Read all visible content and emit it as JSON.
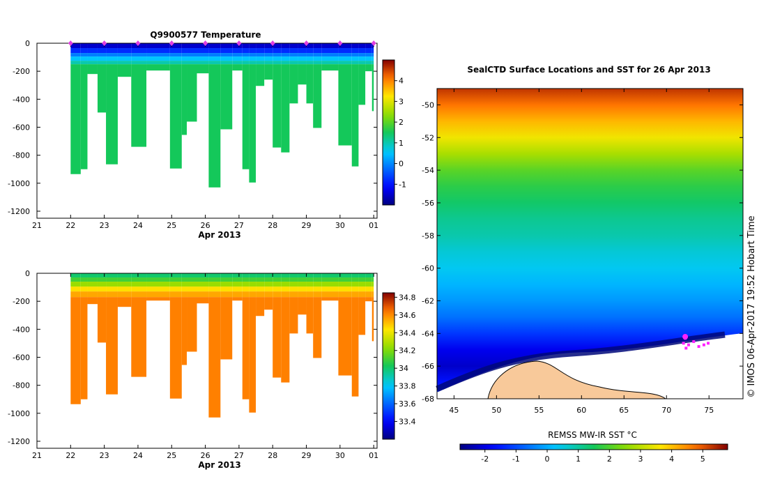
{
  "figure": {
    "credit": "© IMOS 06-Apr-2017 19:52 Hobart Time"
  },
  "chart_data": [
    {
      "id": "temperature",
      "type": "heatmap",
      "title": "Q9900577  Temperature",
      "xlabel": "Apr 2013",
      "x_ticks": [
        "21",
        "22",
        "23",
        "24",
        "25",
        "26",
        "27",
        "28",
        "29",
        "30",
        "01"
      ],
      "ylim": [
        -1250,
        0
      ],
      "y_ticks": [
        0,
        -200,
        -400,
        -600,
        -800,
        -1000,
        -1200
      ],
      "colorbar": {
        "min": -2,
        "max": 5,
        "ticks": [
          -1,
          0,
          1,
          2,
          3,
          4
        ]
      },
      "layers": [
        {
          "depth": [
            0,
            35
          ],
          "value": -1.5
        },
        {
          "depth": [
            35,
            70
          ],
          "value": -0.8
        },
        {
          "depth": [
            70,
            95
          ],
          "value": -0.1
        },
        {
          "depth": [
            95,
            125
          ],
          "value": 0.5
        },
        {
          "depth": [
            125,
            150
          ],
          "value": 1.0
        },
        {
          "depth": [
            150,
            2000
          ],
          "value": 1.5
        }
      ],
      "profiles": [
        {
          "day": 22.0,
          "end_day": 22.3,
          "max_depth": 935
        },
        {
          "day": 22.3,
          "end_day": 22.5,
          "max_depth": 900
        },
        {
          "day": 22.5,
          "end_day": 22.8,
          "max_depth": 220
        },
        {
          "day": 22.8,
          "end_day": 23.05,
          "max_depth": 495
        },
        {
          "day": 23.05,
          "end_day": 23.4,
          "max_depth": 865
        },
        {
          "day": 23.4,
          "end_day": 23.8,
          "max_depth": 240
        },
        {
          "day": 23.8,
          "end_day": 24.25,
          "max_depth": 740
        },
        {
          "day": 24.25,
          "end_day": 24.95,
          "max_depth": 195
        },
        {
          "day": 24.95,
          "end_day": 25.3,
          "max_depth": 895
        },
        {
          "day": 25.3,
          "end_day": 25.45,
          "max_depth": 655
        },
        {
          "day": 25.45,
          "end_day": 25.75,
          "max_depth": 560
        },
        {
          "day": 25.75,
          "end_day": 26.1,
          "max_depth": 215
        },
        {
          "day": 26.1,
          "end_day": 26.45,
          "max_depth": 1030
        },
        {
          "day": 26.45,
          "end_day": 26.8,
          "max_depth": 615
        },
        {
          "day": 26.8,
          "end_day": 27.1,
          "max_depth": 195
        },
        {
          "day": 27.1,
          "end_day": 27.3,
          "max_depth": 900
        },
        {
          "day": 27.3,
          "end_day": 27.5,
          "max_depth": 995
        },
        {
          "day": 27.5,
          "end_day": 27.75,
          "max_depth": 305
        },
        {
          "day": 27.75,
          "end_day": 28.0,
          "max_depth": 260
        },
        {
          "day": 28.0,
          "end_day": 28.25,
          "max_depth": 745
        },
        {
          "day": 28.25,
          "end_day": 28.5,
          "max_depth": 780
        },
        {
          "day": 28.5,
          "end_day": 28.75,
          "max_depth": 430
        },
        {
          "day": 28.75,
          "end_day": 29.0,
          "max_depth": 295
        },
        {
          "day": 29.0,
          "end_day": 29.2,
          "max_depth": 430
        },
        {
          "day": 29.2,
          "end_day": 29.45,
          "max_depth": 605
        },
        {
          "day": 29.45,
          "end_day": 29.95,
          "max_depth": 195
        },
        {
          "day": 29.95,
          "end_day": 30.35,
          "max_depth": 730
        },
        {
          "day": 30.35,
          "end_day": 30.55,
          "max_depth": 880
        },
        {
          "day": 30.55,
          "end_day": 30.75,
          "max_depth": 440
        },
        {
          "day": 30.75,
          "end_day": 30.95,
          "max_depth": 200
        },
        {
          "day": 30.95,
          "end_day": 31.0,
          "max_depth": 485
        }
      ],
      "markers": [
        22.0,
        23.0,
        24.0,
        25.0,
        26.0,
        27.0,
        28.0,
        29.0,
        30.0,
        31.0
      ]
    },
    {
      "id": "salinity",
      "type": "heatmap",
      "title": "",
      "xlabel": "Apr 2013",
      "x_ticks": [
        "21",
        "22",
        "23",
        "24",
        "25",
        "26",
        "27",
        "28",
        "29",
        "30",
        "01"
      ],
      "ylim": [
        -1250,
        0
      ],
      "y_ticks": [
        0,
        -200,
        -400,
        -600,
        -800,
        -1000,
        -1200
      ],
      "colorbar": {
        "min": 33.2,
        "max": 34.85,
        "ticks": [
          "33.4",
          "33.6",
          "33.8",
          "34",
          "34.2",
          "34.4",
          "34.6",
          "34.8"
        ]
      },
      "layers": [
        {
          "depth": [
            0,
            30
          ],
          "value": 34.0
        },
        {
          "depth": [
            30,
            60
          ],
          "value": 34.1
        },
        {
          "depth": [
            60,
            95
          ],
          "value": 34.25
        },
        {
          "depth": [
            95,
            130
          ],
          "value": 34.45
        },
        {
          "depth": [
            130,
            170
          ],
          "value": 34.55
        },
        {
          "depth": [
            170,
            2000
          ],
          "value": 34.62
        }
      ]
    },
    {
      "id": "sst-map",
      "type": "heatmap",
      "title": "SealCTD Surface Locations and SST for 26 Apr 2013",
      "xlim": [
        43,
        79
      ],
      "ylim": [
        -68,
        -49
      ],
      "x_ticks": [
        45,
        50,
        55,
        60,
        65,
        70,
        75
      ],
      "y_ticks": [
        -50,
        -52,
        -54,
        -56,
        -58,
        -60,
        -62,
        -64,
        -66,
        -68
      ],
      "colorbar": {
        "label": "REMSS MW-IR SST °C",
        "min": -2.8,
        "max": 5.8,
        "ticks": [
          -2,
          -1,
          0,
          1,
          2,
          3,
          4,
          5
        ]
      },
      "sst_by_latitude": [
        {
          "lat": -49,
          "sst": 5.3
        },
        {
          "lat": -50,
          "sst": 4.7
        },
        {
          "lat": -51,
          "sst": 4.1
        },
        {
          "lat": -52,
          "sst": 3.5
        },
        {
          "lat": -53,
          "sst": 2.8
        },
        {
          "lat": -54,
          "sst": 2.1
        },
        {
          "lat": -55,
          "sst": 1.7
        },
        {
          "lat": -56,
          "sst": 1.4
        },
        {
          "lat": -57,
          "sst": 1.1
        },
        {
          "lat": -58,
          "sst": 0.9
        },
        {
          "lat": -59,
          "sst": 0.6
        },
        {
          "lat": -60,
          "sst": 0.4
        },
        {
          "lat": -61,
          "sst": 0.1
        },
        {
          "lat": -62,
          "sst": -0.2
        },
        {
          "lat": -63,
          "sst": -0.6
        },
        {
          "lat": -64,
          "sst": -1.2
        },
        {
          "lat": -65,
          "sst": -1.9
        },
        {
          "lat": -66,
          "sst": -2.2
        },
        {
          "lat": -67,
          "sst": -1.6
        },
        {
          "lat": -68,
          "sst": -1.0
        }
      ],
      "seal_locations": [
        {
          "lon": 72.2,
          "lat": -64.3
        },
        {
          "lon": 72.0,
          "lat": -64.6
        },
        {
          "lon": 72.6,
          "lat": -64.7
        },
        {
          "lon": 73.2,
          "lat": -64.5
        },
        {
          "lon": 73.8,
          "lat": -64.8
        },
        {
          "lon": 74.4,
          "lat": -64.7
        },
        {
          "lon": 74.9,
          "lat": -64.6
        },
        {
          "lon": 72.3,
          "lat": -64.9
        }
      ],
      "current_location": {
        "lon": 72.2,
        "lat": -64.2
      }
    }
  ]
}
